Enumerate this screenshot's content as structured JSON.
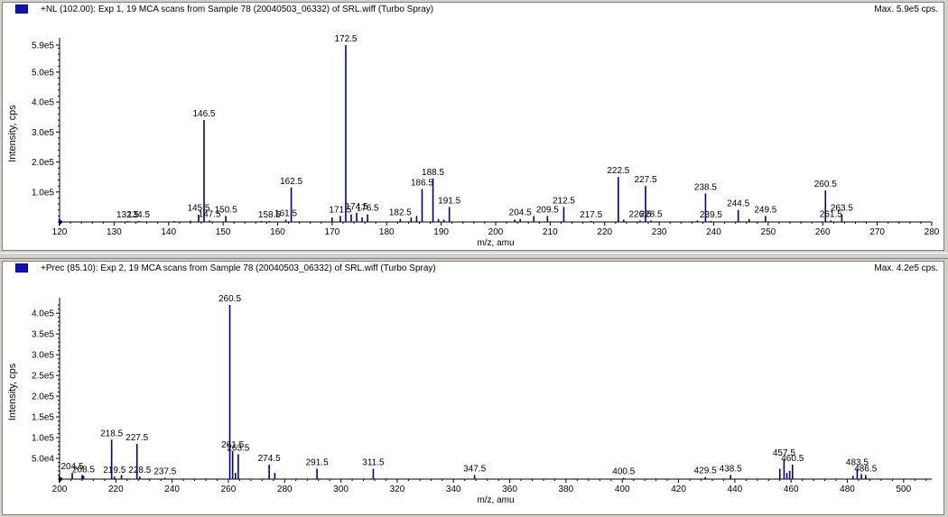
{
  "panes": [
    {
      "title": "+NL (102.00): Exp 1, 19 MCA scans from Sample 78 (20040503_06332) of SRL.wiff (Turbo Spray)",
      "max_label": "Max. 5.9e5 cps."
    },
    {
      "title": "+Prec (85.10): Exp 2, 19 MCA scans from Sample 78 (20040503_06332) of SRL.wiff (Turbo Spray)",
      "max_label": "Max. 4.2e5 cps."
    }
  ],
  "colors": {
    "peak": "#000080",
    "axis": "#000000",
    "label": "#000000",
    "background": "#ffffff",
    "frame": "#d4d0c8"
  },
  "chart_data": [
    {
      "type": "bar",
      "title": "+NL (102.00): Exp 1, 19 MCA scans from Sample 78 (20040503_06332) of SRL.wiff (Turbo Spray)",
      "xlabel": "m/z, amu",
      "ylabel": "Intensity, cps",
      "xlim": [
        120,
        280
      ],
      "ylim": [
        0,
        590000
      ],
      "xticks": [
        120,
        130,
        140,
        150,
        160,
        170,
        180,
        190,
        200,
        210,
        220,
        230,
        240,
        250,
        260,
        270,
        280
      ],
      "yticks": [
        {
          "value": 100000,
          "label": "1.0e5"
        },
        {
          "value": 200000,
          "label": "2.0e5"
        },
        {
          "value": 300000,
          "label": "3.0e5"
        },
        {
          "value": 400000,
          "label": "4.0e5"
        },
        {
          "value": 500000,
          "label": "5.0e5"
        },
        {
          "value": 590000,
          "label": "5.9e5"
        }
      ],
      "peaks": [
        {
          "x": 132.5,
          "y": 3000,
          "label": "132.5"
        },
        {
          "x": 134.5,
          "y": 3000,
          "label": "134.5"
        },
        {
          "x": 145.5,
          "y": 25000,
          "label": "145.5"
        },
        {
          "x": 146.5,
          "y": 340000,
          "label": "146.5"
        },
        {
          "x": 147.5,
          "y": 5000,
          "label": "147.5"
        },
        {
          "x": 150.5,
          "y": 20000,
          "label": "150.5"
        },
        {
          "x": 158.5,
          "y": 3000,
          "label": "158.5"
        },
        {
          "x": 161.5,
          "y": 8000,
          "label": "161.5"
        },
        {
          "x": 162.5,
          "y": 115000,
          "label": "162.5"
        },
        {
          "x": 171.5,
          "y": 20000,
          "label": "171.5"
        },
        {
          "x": 172.5,
          "y": 590000,
          "label": "172.5"
        },
        {
          "x": 174.5,
          "y": 30000,
          "label": "174.5"
        },
        {
          "x": 176.5,
          "y": 25000,
          "label": "176.5"
        },
        {
          "x": 182.5,
          "y": 10000,
          "label": "182.5"
        },
        {
          "x": 186.5,
          "y": 110000,
          "label": "186.5"
        },
        {
          "x": 188.5,
          "y": 145000,
          "label": "188.5"
        },
        {
          "x": 191.5,
          "y": 50000,
          "label": "191.5"
        },
        {
          "x": 204.5,
          "y": 10000,
          "label": "204.5"
        },
        {
          "x": 209.5,
          "y": 20000,
          "label": "209.5"
        },
        {
          "x": 212.5,
          "y": 50000,
          "label": "212.5"
        },
        {
          "x": 217.5,
          "y": 3000,
          "label": "217.5"
        },
        {
          "x": 222.5,
          "y": 150000,
          "label": "222.5"
        },
        {
          "x": 226.5,
          "y": 5000,
          "label": "226.5"
        },
        {
          "x": 227.5,
          "y": 120000,
          "label": "227.5"
        },
        {
          "x": 228.5,
          "y": 5000,
          "label": "228.5"
        },
        {
          "x": 238.5,
          "y": 95000,
          "label": "238.5"
        },
        {
          "x": 239.5,
          "y": 3000,
          "label": "239.5"
        },
        {
          "x": 244.5,
          "y": 40000,
          "label": "244.5"
        },
        {
          "x": 249.5,
          "y": 20000,
          "label": "249.5"
        },
        {
          "x": 260.5,
          "y": 105000,
          "label": "260.5"
        },
        {
          "x": 261.5,
          "y": 5000,
          "label": "261.5"
        },
        {
          "x": 263.5,
          "y": 25000,
          "label": "263.5"
        },
        {
          "x": 141,
          "y": 3000
        },
        {
          "x": 144,
          "y": 4000
        },
        {
          "x": 157,
          "y": 3000
        },
        {
          "x": 170,
          "y": 15000
        },
        {
          "x": 173.5,
          "y": 25000
        },
        {
          "x": 175.5,
          "y": 15000
        },
        {
          "x": 184.5,
          "y": 15000
        },
        {
          "x": 185.5,
          "y": 20000
        },
        {
          "x": 189.5,
          "y": 10000
        },
        {
          "x": 190.5,
          "y": 8000
        },
        {
          "x": 203.5,
          "y": 8000
        },
        {
          "x": 207,
          "y": 20000
        },
        {
          "x": 223.5,
          "y": 8000
        },
        {
          "x": 237,
          "y": 5000
        },
        {
          "x": 246.5,
          "y": 10000
        }
      ]
    },
    {
      "type": "bar",
      "title": "+Prec (85.10): Exp 2, 19 MCA scans from Sample 78 (20040503_06332) of SRL.wiff (Turbo Spray)",
      "xlabel": "m/z, amu",
      "ylabel": "Intensity, cps",
      "xlim": [
        200,
        510
      ],
      "ylim": [
        0,
        420000
      ],
      "xticks": [
        200,
        220,
        240,
        260,
        280,
        300,
        320,
        340,
        360,
        380,
        400,
        420,
        440,
        460,
        480,
        500
      ],
      "yticks": [
        {
          "value": 50000,
          "label": "5.0e4"
        },
        {
          "value": 100000,
          "label": "1.0e5"
        },
        {
          "value": 150000,
          "label": "1.5e5"
        },
        {
          "value": 200000,
          "label": "2.0e5"
        },
        {
          "value": 250000,
          "label": "2.5e5"
        },
        {
          "value": 300000,
          "label": "3.0e5"
        },
        {
          "value": 350000,
          "label": "3.5e5"
        },
        {
          "value": 400000,
          "label": "4.0e5"
        }
      ],
      "peaks": [
        {
          "x": 204.5,
          "y": 15000,
          "label": "204.5"
        },
        {
          "x": 208.5,
          "y": 8000,
          "label": "208.5"
        },
        {
          "x": 218.5,
          "y": 95000,
          "label": "218.5"
        },
        {
          "x": 219.5,
          "y": 6000,
          "label": "219.5"
        },
        {
          "x": 227.5,
          "y": 85000,
          "label": "227.5"
        },
        {
          "x": 228.5,
          "y": 6000,
          "label": "228.5"
        },
        {
          "x": 237.5,
          "y": 3000,
          "label": "237.5"
        },
        {
          "x": 260.5,
          "y": 420000,
          "label": "260.5"
        },
        {
          "x": 261.5,
          "y": 68000,
          "label": "261.5"
        },
        {
          "x": 263.5,
          "y": 60000,
          "label": "263.5"
        },
        {
          "x": 274.5,
          "y": 35000,
          "label": "274.5"
        },
        {
          "x": 291.5,
          "y": 25000,
          "label": "291.5"
        },
        {
          "x": 311.5,
          "y": 25000,
          "label": "311.5"
        },
        {
          "x": 347.5,
          "y": 10000,
          "label": "347.5"
        },
        {
          "x": 400.5,
          "y": 3000,
          "label": "400.5"
        },
        {
          "x": 429.5,
          "y": 5000,
          "label": "429.5"
        },
        {
          "x": 438.5,
          "y": 10000,
          "label": "438.5"
        },
        {
          "x": 457.5,
          "y": 48000,
          "label": "457.5"
        },
        {
          "x": 460.5,
          "y": 35000,
          "label": "460.5"
        },
        {
          "x": 483.5,
          "y": 25000,
          "label": "483.5"
        },
        {
          "x": 486.5,
          "y": 10000,
          "label": "486.5"
        },
        {
          "x": 208,
          "y": 10000
        },
        {
          "x": 222,
          "y": 10000
        },
        {
          "x": 262.5,
          "y": 15000
        },
        {
          "x": 276.5,
          "y": 15000
        },
        {
          "x": 456,
          "y": 25000
        },
        {
          "x": 458.5,
          "y": 15000
        },
        {
          "x": 459.5,
          "y": 20000
        },
        {
          "x": 482,
          "y": 8000
        },
        {
          "x": 485,
          "y": 12000
        }
      ]
    }
  ]
}
